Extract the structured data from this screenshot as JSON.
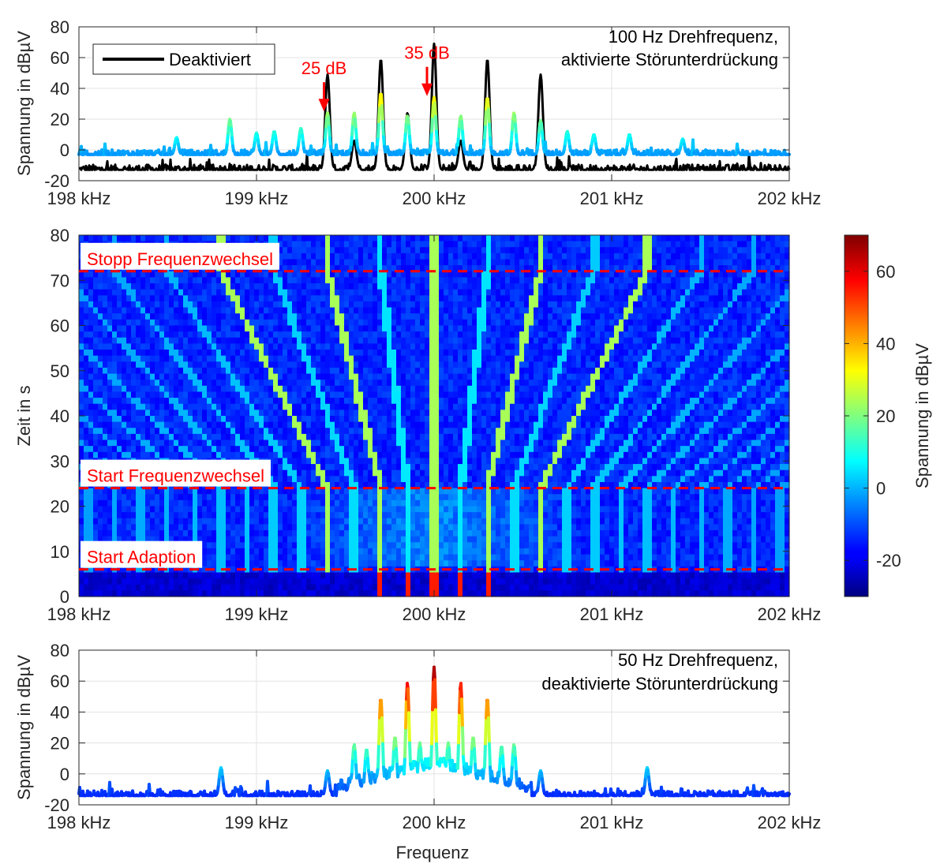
{
  "chart_data": [
    {
      "type": "line",
      "panel": "top",
      "ylabel": "Spannung in dBµV",
      "xlabel": "",
      "x_unit": "kHz",
      "xlim": [
        198,
        202
      ],
      "ylim": [
        -20,
        80
      ],
      "xticks": [
        198,
        199,
        200,
        201,
        202
      ],
      "xtick_labels": [
        "198 kHz",
        "199 kHz",
        "200 kHz",
        "201 kHz",
        "202 kHz"
      ],
      "yticks": [
        -20,
        0,
        20,
        40,
        60,
        80
      ],
      "ytick_labels": [
        "-20",
        "0",
        "20",
        "40",
        "60",
        "80"
      ],
      "grid": true,
      "legend": {
        "entries": [
          "Deaktiviert"
        ],
        "placement": "top-left"
      },
      "annotation_text": [
        "100 Hz Drehfrequenz,",
        "aktivierte Störunterdrückung"
      ],
      "annotation_placement": "top-right",
      "arrows": [
        {
          "label": "25 dB",
          "x": 199.38,
          "y_from": 44,
          "y_to": 25,
          "color": "#ff0000"
        },
        {
          "label": "35 dB",
          "x": 199.96,
          "y_from": 54,
          "y_to": 35,
          "color": "#ff0000"
        }
      ],
      "series": [
        {
          "name": "Deaktiviert",
          "color": "#000000",
          "baseline": -13,
          "peaks": [
            {
              "x": 199.4,
              "y": 49
            },
            {
              "x": 199.7,
              "y": 59
            },
            {
              "x": 199.85,
              "y": 24
            },
            {
              "x": 200.0,
              "y": 69
            },
            {
              "x": 200.3,
              "y": 59
            },
            {
              "x": 200.6,
              "y": 49
            },
            {
              "x": 200.15,
              "y": 6
            },
            {
              "x": 199.55,
              "y": 6
            }
          ]
        },
        {
          "name": "",
          "color_mode": "jet",
          "baseline": -3,
          "peaks": [
            {
              "x": 199.4,
              "y": 24
            },
            {
              "x": 199.55,
              "y": 24
            },
            {
              "x": 199.7,
              "y": 37
            },
            {
              "x": 199.85,
              "y": 22
            },
            {
              "x": 200.0,
              "y": 34
            },
            {
              "x": 200.15,
              "y": 22
            },
            {
              "x": 200.3,
              "y": 34
            },
            {
              "x": 200.45,
              "y": 24
            },
            {
              "x": 200.6,
              "y": 19
            },
            {
              "x": 199.25,
              "y": 14
            },
            {
              "x": 199.1,
              "y": 12
            },
            {
              "x": 198.85,
              "y": 20
            },
            {
              "x": 199.0,
              "y": 11
            },
            {
              "x": 200.75,
              "y": 12
            },
            {
              "x": 200.9,
              "y": 10
            },
            {
              "x": 201.1,
              "y": 10
            },
            {
              "x": 198.55,
              "y": 8
            },
            {
              "x": 201.4,
              "y": 7
            }
          ]
        }
      ]
    },
    {
      "type": "heatmap",
      "panel": "middle",
      "ylabel": "Zeit in s",
      "xlabel": "",
      "x_unit": "kHz",
      "xlim": [
        198,
        202
      ],
      "ylim": [
        0,
        80
      ],
      "xticks": [
        198,
        199,
        200,
        201,
        202
      ],
      "xtick_labels": [
        "198 kHz",
        "199 kHz",
        "200 kHz",
        "201 kHz",
        "202 kHz"
      ],
      "yticks": [
        0,
        10,
        20,
        30,
        40,
        50,
        60,
        70,
        80
      ],
      "ytick_labels": [
        "0",
        "10",
        "20",
        "30",
        "40",
        "50",
        "60",
        "70",
        "80"
      ],
      "colormap": "jet",
      "clim": [
        -30,
        70
      ],
      "colorbar": {
        "label": "Spannung in dBµV",
        "ticks": [
          -20,
          0,
          20,
          40,
          60
        ],
        "tick_labels": [
          "-20",
          "0",
          "20",
          "40",
          "60"
        ]
      },
      "markers": [
        {
          "label": "Stopp Frequenzwechsel",
          "y": 72,
          "color": "#ff0000"
        },
        {
          "label": "Start Frequenzwechsel",
          "y": 24,
          "color": "#ff0000"
        },
        {
          "label": "Start Adaption",
          "y": 6,
          "color": "#ff0000"
        }
      ]
    },
    {
      "type": "line",
      "panel": "bottom",
      "ylabel": "Spannung in dBµV",
      "xlabel": "Frequenz",
      "x_unit": "kHz",
      "xlim": [
        198,
        202
      ],
      "ylim": [
        -20,
        80
      ],
      "xticks": [
        198,
        199,
        200,
        201,
        202
      ],
      "xtick_labels": [
        "198 kHz",
        "199 kHz",
        "200 kHz",
        "201 kHz",
        "202 kHz"
      ],
      "yticks": [
        -20,
        0,
        20,
        40,
        60,
        80
      ],
      "ytick_labels": [
        "-20",
        "0",
        "20",
        "40",
        "60",
        "80"
      ],
      "grid": true,
      "annotation_text": [
        "50 Hz Drehfrequenz,",
        "deaktivierte Störunterdrückung"
      ],
      "annotation_placement": "top-right",
      "series": [
        {
          "name": "",
          "color_mode": "jet",
          "baseline": -14,
          "peaks": [
            {
              "x": 200.0,
              "y": 69
            },
            {
              "x": 199.85,
              "y": 59
            },
            {
              "x": 200.15,
              "y": 59
            },
            {
              "x": 199.7,
              "y": 49
            },
            {
              "x": 200.3,
              "y": 49
            },
            {
              "x": 199.55,
              "y": 19
            },
            {
              "x": 200.45,
              "y": 19
            },
            {
              "x": 199.78,
              "y": 24
            },
            {
              "x": 199.92,
              "y": 20
            },
            {
              "x": 200.08,
              "y": 20
            },
            {
              "x": 200.22,
              "y": 24
            },
            {
              "x": 200.38,
              "y": 18
            },
            {
              "x": 199.62,
              "y": 16
            },
            {
              "x": 198.8,
              "y": 4
            },
            {
              "x": 201.2,
              "y": 4
            },
            {
              "x": 199.4,
              "y": 2
            },
            {
              "x": 200.6,
              "y": 2
            }
          ]
        }
      ]
    }
  ]
}
